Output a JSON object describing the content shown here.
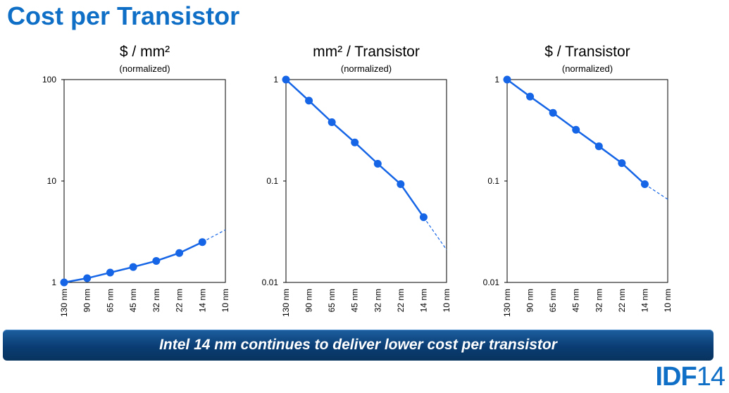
{
  "slide": {
    "title": "Cost per Transistor",
    "banner": "Intel 14 nm continues to deliver lower cost per transistor",
    "logo": {
      "brand": "IDF",
      "year": "14"
    }
  },
  "colors": {
    "accent": "#0f6fc6",
    "series": "#1565e6",
    "banner": "#0a3d73"
  },
  "chart_data": [
    {
      "type": "line",
      "title": "$ / mm²",
      "subtitle": "(normalized)",
      "yscale": "log",
      "ylim": [
        1,
        100
      ],
      "yticks": [
        1,
        10,
        100
      ],
      "ytick_labels": [
        "1",
        "10",
        "100"
      ],
      "categories": [
        "130 nm",
        "90 nm",
        "65 nm",
        "45 nm",
        "32 nm",
        "22 nm",
        "14 nm",
        "10 nm"
      ],
      "values": [
        1.0,
        1.1,
        1.25,
        1.42,
        1.63,
        1.95,
        2.5,
        null
      ],
      "projection": {
        "from": "14 nm",
        "to": "10 nm",
        "values": [
          2.5,
          3.3
        ]
      },
      "grid": false
    },
    {
      "type": "line",
      "title": "mm² / Transistor",
      "subtitle": "(normalized)",
      "yscale": "log",
      "ylim": [
        0.01,
        1
      ],
      "yticks": [
        0.01,
        0.1,
        1
      ],
      "ytick_labels": [
        "0.01",
        "0.1",
        "1"
      ],
      "categories": [
        "130 nm",
        "90 nm",
        "65 nm",
        "45 nm",
        "32 nm",
        "22 nm",
        "14 nm",
        "10 nm"
      ],
      "values": [
        1.0,
        0.62,
        0.38,
        0.24,
        0.148,
        0.093,
        0.044,
        null
      ],
      "projection": {
        "from": "14 nm",
        "to": "10 nm",
        "values": [
          0.044,
          0.021
        ]
      },
      "grid": false
    },
    {
      "type": "line",
      "title": "$ / Transistor",
      "subtitle": "(normalized)",
      "yscale": "log",
      "ylim": [
        0.01,
        1
      ],
      "yticks": [
        0.01,
        0.1,
        1
      ],
      "ytick_labels": [
        "0.01",
        "0.1",
        "1"
      ],
      "categories": [
        "130 nm",
        "90 nm",
        "65 nm",
        "45 nm",
        "32 nm",
        "22 nm",
        "14 nm",
        "10 nm"
      ],
      "values": [
        1.0,
        0.68,
        0.47,
        0.32,
        0.22,
        0.15,
        0.093,
        null
      ],
      "projection": {
        "from": "14 nm",
        "to": "10 nm",
        "values": [
          0.093,
          0.066
        ]
      },
      "grid": false
    }
  ]
}
